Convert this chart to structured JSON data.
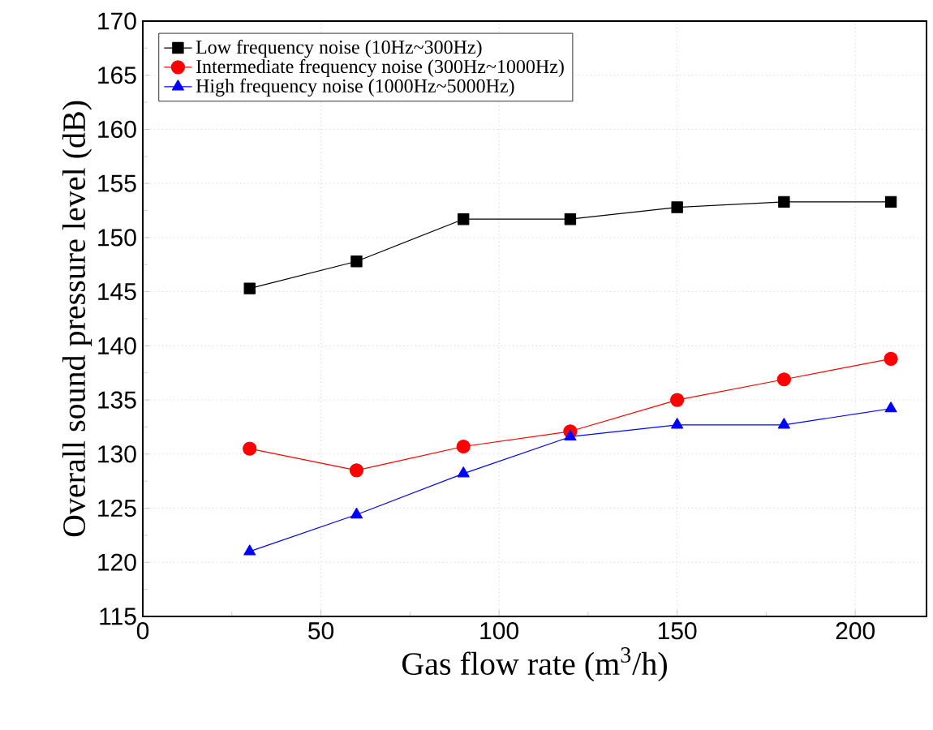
{
  "chart_data": {
    "type": "line",
    "xlabel": "Gas flow rate (m$^{3}$/h)",
    "ylabel": "Overall sound pressure level (dB)",
    "x": [
      30,
      60,
      90,
      120,
      150,
      180,
      210
    ],
    "xlim": [
      0,
      220
    ],
    "xticks": [
      0,
      50,
      100,
      150,
      200
    ],
    "ylim": [
      115,
      170
    ],
    "yticks": [
      115,
      120,
      125,
      130,
      135,
      140,
      145,
      150,
      155,
      160,
      165,
      170
    ],
    "grid": true,
    "legend": "top left",
    "line_style": "solid",
    "series": [
      {
        "name": "Low frequency noise (10Hz~300Hz)",
        "color": "#000000",
        "marker": "square",
        "values": [
          145.3,
          147.8,
          151.7,
          151.7,
          152.8,
          153.3,
          153.3
        ]
      },
      {
        "name": "Intermediate frequency noise (300Hz~1000Hz)",
        "color": "#ff0000",
        "marker": "circle",
        "values": [
          130.5,
          128.5,
          130.7,
          132.1,
          135.0,
          136.9,
          138.8
        ]
      },
      {
        "name": "High frequency noise (1000Hz~5000Hz)",
        "color": "#0000ff",
        "marker": "triangle",
        "values": [
          121.0,
          124.4,
          128.2,
          131.6,
          132.7,
          132.7,
          134.2
        ]
      }
    ]
  }
}
